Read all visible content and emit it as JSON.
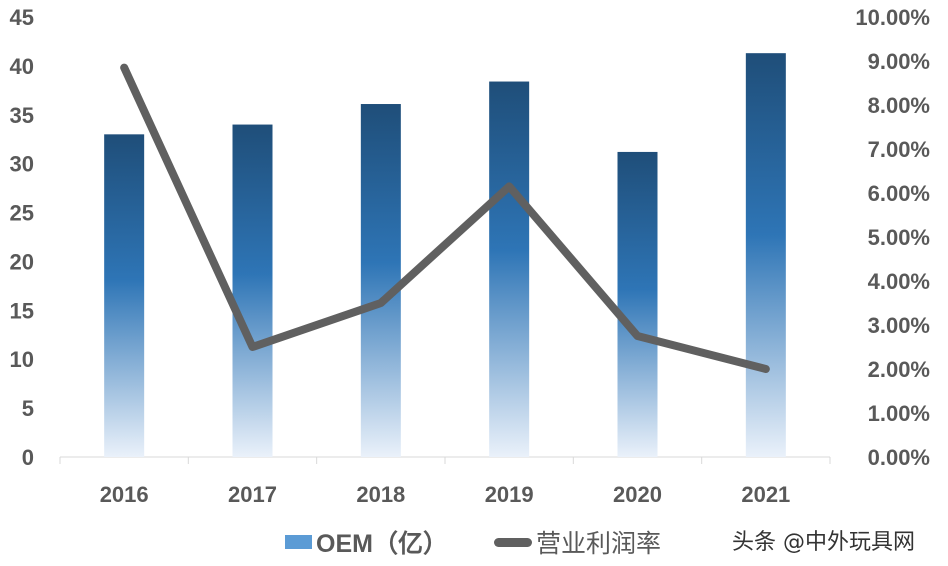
{
  "chart_data": {
    "type": "bar+line",
    "categories": [
      "2016",
      "2017",
      "2018",
      "2019",
      "2020",
      "2021"
    ],
    "series": [
      {
        "name": "OEM（亿）",
        "type": "bar",
        "axis": "left",
        "values": [
          33.0,
          34.0,
          36.1,
          38.4,
          31.2,
          41.3
        ],
        "color": "#2e75b6"
      },
      {
        "name": "营业利润率",
        "type": "line",
        "axis": "right",
        "values": [
          8.85,
          2.5,
          3.5,
          6.15,
          2.75,
          2.0
        ],
        "color": "#606060"
      }
    ],
    "y_left": {
      "min": 0,
      "max": 45,
      "ticks": [
        "0",
        "5",
        "10",
        "15",
        "20",
        "25",
        "30",
        "35",
        "40",
        "45"
      ]
    },
    "y_right": {
      "min": 0,
      "max": 10,
      "ticks": [
        "0.00%",
        "1.00%",
        "2.00%",
        "3.00%",
        "4.00%",
        "5.00%",
        "6.00%",
        "7.00%",
        "8.00%",
        "9.00%",
        "10.00%"
      ]
    },
    "grid": false,
    "legend": "bottom"
  },
  "legend": {
    "bar_label": "OEM（亿）",
    "line_label": "营业利润率"
  },
  "watermark": "头条 @中外玩具网"
}
